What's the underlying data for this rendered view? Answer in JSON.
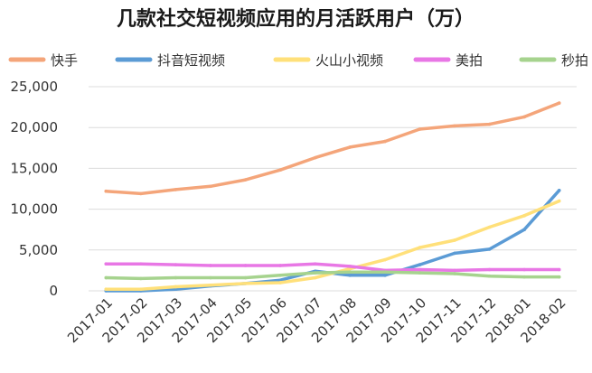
{
  "chart_data": {
    "type": "line",
    "title": "几款社交短视频应用的月活跃用户（万）",
    "xlabel": "",
    "ylabel": "",
    "categories": [
      "2017-01",
      "2017-02",
      "2017-03",
      "2017-04",
      "2017-05",
      "2017-06",
      "2017-07",
      "2017-08",
      "2017-09",
      "2017-10",
      "2017-11",
      "2017-12",
      "2018-01",
      "2018-02"
    ],
    "ylim": [
      0,
      25000
    ],
    "yticks": [
      0,
      5000,
      10000,
      15000,
      20000,
      25000
    ],
    "ytick_labels": [
      "0",
      "5,000",
      "10,000",
      "15,000",
      "20,000",
      "25,000"
    ],
    "grid": true,
    "legend_position": "top",
    "series": [
      {
        "name": "快手",
        "color": "#F4A57A",
        "values": [
          12200,
          11900,
          12400,
          12800,
          13600,
          14800,
          16300,
          17600,
          18300,
          19800,
          20200,
          20400,
          21300,
          23000
        ]
      },
      {
        "name": "抖音短视频",
        "color": "#5B9BD5",
        "values": [
          0,
          0,
          200,
          600,
          900,
          1300,
          2400,
          1900,
          1900,
          3200,
          4600,
          5100,
          7500,
          12300
        ]
      },
      {
        "name": "火山小视频",
        "color": "#FFE07A",
        "values": [
          200,
          200,
          500,
          700,
          900,
          1000,
          1600,
          2700,
          3800,
          5300,
          6200,
          7800,
          9200,
          11000
        ]
      },
      {
        "name": "美拍",
        "color": "#E877E5",
        "values": [
          3300,
          3300,
          3200,
          3100,
          3100,
          3100,
          3300,
          3000,
          2500,
          2600,
          2500,
          2600,
          2600,
          2600
        ]
      },
      {
        "name": "秒拍",
        "color": "#A6D38E",
        "values": [
          1600,
          1500,
          1600,
          1600,
          1600,
          1900,
          2200,
          2300,
          2300,
          2200,
          2100,
          1800,
          1700,
          1700
        ]
      }
    ]
  }
}
